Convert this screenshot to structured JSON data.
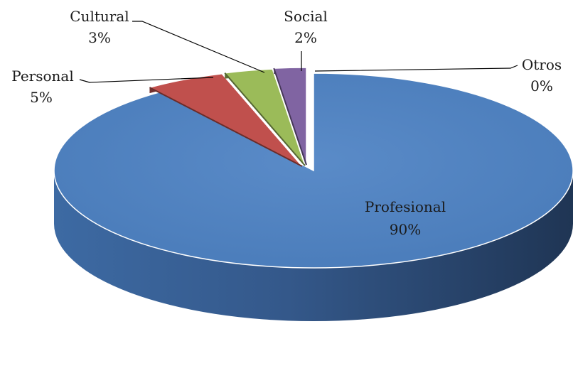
{
  "chart_data": {
    "type": "pie",
    "title": "",
    "categories": [
      "Profesional",
      "Personal",
      "Cultural",
      "Social",
      "Otros"
    ],
    "values": [
      90,
      5,
      3,
      2,
      0
    ],
    "value_labels": [
      "90%",
      "5%",
      "3%",
      "2%",
      "0%"
    ],
    "colors": [
      "#4f81bd",
      "#c0504d",
      "#9bbb59",
      "#8064a2",
      "#4bacc6"
    ],
    "style": "3d-exploded",
    "legend": "none"
  }
}
